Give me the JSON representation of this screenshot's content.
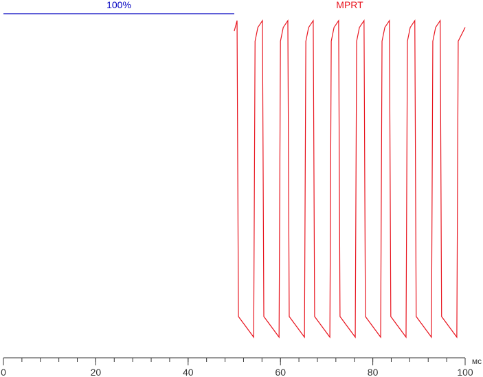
{
  "chart_data": {
    "type": "line",
    "x_label": "мс",
    "xlim": [
      0,
      100
    ],
    "xticks": [
      0,
      20,
      40,
      60,
      80,
      100
    ],
    "xminorticks": [
      0,
      4,
      8,
      12,
      16,
      20,
      24,
      28,
      32,
      36,
      40,
      44,
      48,
      52,
      56,
      60,
      64,
      68,
      72,
      76,
      80,
      84,
      88,
      92,
      96,
      100
    ],
    "ylim": [
      0,
      100
    ],
    "series": [
      {
        "name": "100%",
        "color": "#0000c0",
        "x": [
          0,
          5,
          10,
          15,
          20,
          25,
          30,
          35,
          40,
          45,
          50
        ],
        "values": [
          100,
          100,
          100,
          100,
          100,
          100,
          100,
          100,
          100,
          100,
          100
        ]
      },
      {
        "name": "MPRT",
        "color": "#e8141e",
        "x": [
          50.0,
          50.6,
          50.9,
          54.2,
          54.5,
          55.1,
          56.1,
          56.4,
          59.7,
          60.0,
          60.6,
          61.6,
          61.9,
          65.2,
          65.5,
          66.1,
          67.1,
          67.4,
          70.7,
          71.0,
          71.6,
          72.6,
          72.9,
          76.2,
          76.5,
          77.1,
          78.1,
          78.4,
          81.7,
          82.0,
          82.6,
          83.6,
          83.9,
          87.2,
          87.5,
          88.1,
          89.1,
          89.4,
          92.7,
          93.0,
          93.6,
          94.6,
          94.9,
          98.2,
          98.5,
          100
        ],
        "values": [
          95,
          98,
          12,
          6,
          92,
          96,
          98,
          12,
          6,
          92,
          96,
          98,
          12,
          6,
          92,
          96,
          98,
          12,
          6,
          92,
          96,
          98,
          12,
          6,
          92,
          96,
          98,
          12,
          6,
          92,
          96,
          98,
          12,
          6,
          92,
          96,
          98,
          12,
          6,
          92,
          96,
          98,
          12,
          6,
          92,
          96
        ]
      }
    ]
  }
}
